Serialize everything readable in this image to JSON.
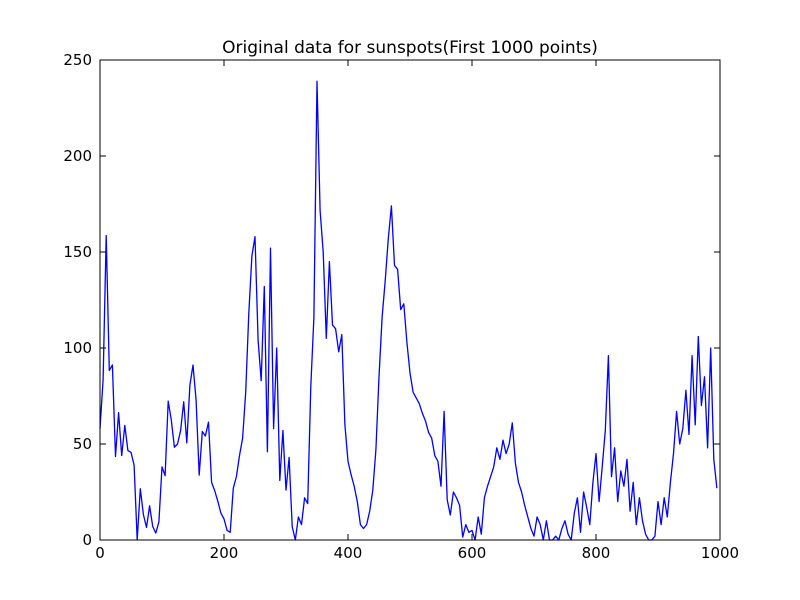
{
  "chart_data": {
    "type": "line",
    "title": "Original data for sunspots(First 1000 points)",
    "color": "#0000ff",
    "xlim": [
      0,
      1000
    ],
    "xticks": [
      0,
      200,
      400,
      600,
      800,
      1000
    ],
    "ylim": [
      0,
      250
    ],
    "yticks": [
      0,
      50,
      100,
      150,
      200,
      250
    ],
    "x": [
      0,
      5,
      10,
      15,
      20,
      25,
      30,
      35,
      40,
      45,
      50,
      55,
      60,
      65,
      70,
      75,
      80,
      85,
      90,
      95,
      100,
      105,
      110,
      115,
      120,
      125,
      130,
      135,
      140,
      145,
      150,
      155,
      160,
      165,
      170,
      175,
      180,
      185,
      190,
      195,
      200,
      205,
      210,
      215,
      220,
      225,
      230,
      235,
      240,
      245,
      250,
      255,
      260,
      265,
      270,
      275,
      280,
      285,
      290,
      295,
      300,
      305,
      310,
      315,
      320,
      325,
      330,
      335,
      340,
      345,
      350,
      355,
      360,
      365,
      370,
      375,
      380,
      385,
      390,
      395,
      400,
      405,
      410,
      415,
      420,
      425,
      430,
      435,
      440,
      445,
      450,
      455,
      460,
      465,
      470,
      475,
      480,
      485,
      490,
      495,
      500,
      505,
      510,
      515,
      520,
      525,
      530,
      535,
      540,
      545,
      550,
      555,
      560,
      565,
      570,
      575,
      580,
      585,
      590,
      595,
      600,
      605,
      610,
      615,
      620,
      625,
      630,
      635,
      640,
      645,
      650,
      655,
      660,
      665,
      670,
      675,
      680,
      685,
      690,
      695,
      700,
      705,
      710,
      715,
      720,
      725,
      730,
      735,
      740,
      745,
      750,
      755,
      760,
      765,
      770,
      775,
      780,
      785,
      790,
      795,
      800,
      805,
      810,
      815,
      820,
      825,
      830,
      835,
      840,
      845,
      850,
      855,
      860,
      865,
      870,
      875,
      880,
      885,
      890,
      895,
      900,
      905,
      910,
      915,
      920,
      925,
      930,
      935,
      940,
      945,
      950,
      955,
      960,
      965,
      970,
      975,
      980,
      985,
      990,
      995
    ],
    "values": [
      58,
      83.5,
      158.6,
      88.3,
      91.2,
      43.5,
      66.3,
      44,
      59.7,
      46.6,
      45.7,
      39,
      0,
      26.7,
      13.2,
      6.5,
      17.8,
      7.1,
      3.6,
      9.4,
      38.1,
      33.5,
      72.3,
      62.5,
      48.3,
      50,
      57,
      72,
      50.6,
      80.7,
      91.1,
      72.8,
      33.8,
      56.5,
      54.2,
      61.4,
      30,
      25.7,
      20.2,
      14,
      11,
      5,
      4,
      27,
      33,
      44,
      53,
      77,
      118,
      148,
      158,
      104,
      83,
      132,
      46,
      152,
      58,
      100,
      31,
      57,
      26,
      43,
      7,
      0,
      12,
      8,
      22,
      19,
      80,
      116,
      238.9,
      171.6,
      150,
      105,
      145,
      112,
      110,
      98,
      107,
      60,
      41,
      34,
      28,
      20,
      8,
      6,
      8,
      15,
      26,
      47,
      85,
      116,
      135,
      157,
      174,
      143,
      141,
      120,
      123,
      103,
      87,
      77,
      74,
      71,
      66,
      62,
      56,
      53,
      44,
      41,
      28,
      67,
      21,
      13,
      25,
      22,
      18,
      1.5,
      8,
      4,
      5,
      0,
      12,
      3,
      22,
      28,
      33,
      38,
      48,
      42,
      52,
      45,
      50,
      61,
      40,
      30,
      25,
      18,
      12,
      6,
      2,
      12,
      8,
      0,
      10,
      0,
      0,
      2,
      0,
      6,
      10,
      3,
      0,
      14,
      22,
      4,
      25,
      17,
      8,
      30,
      45,
      20,
      38,
      57,
      96,
      33,
      48,
      20,
      36,
      28,
      42,
      15,
      30,
      8,
      22,
      10,
      3,
      0,
      0,
      2,
      20,
      8,
      22,
      12,
      30,
      45,
      67,
      50,
      58,
      78,
      55,
      96,
      60,
      106,
      70,
      85,
      48,
      100,
      42,
      27
    ]
  }
}
